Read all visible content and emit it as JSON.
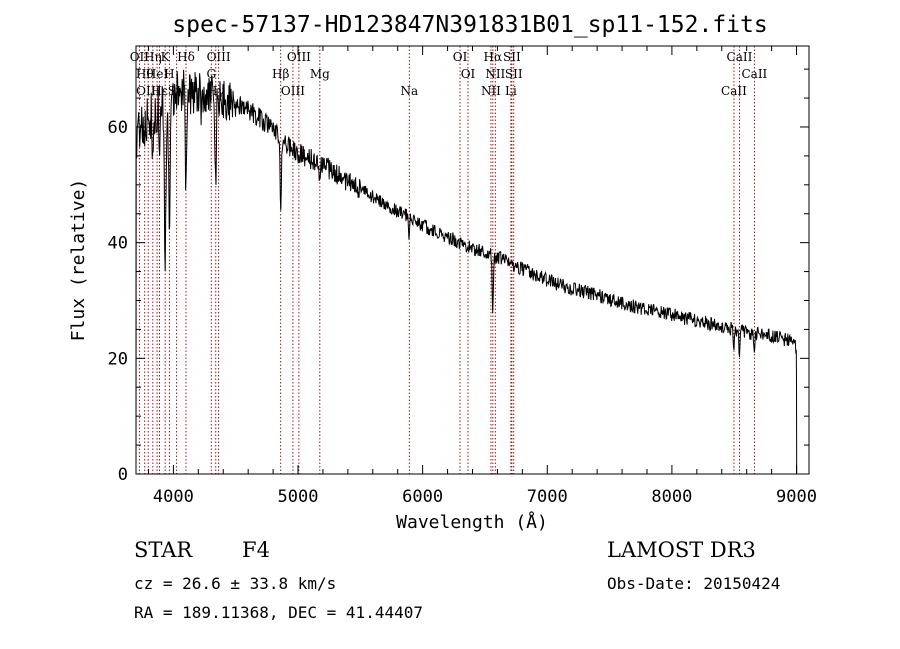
{
  "chart_data": {
    "type": "line",
    "title": "spec-57137-HD123847N391831B01_sp11-152.fits",
    "xlabel": "Wavelength (Å)",
    "ylabel": "Flux (relative)",
    "xlim": [
      3700,
      9100
    ],
    "ylim": [
      0,
      74
    ],
    "xticks": [
      4000,
      5000,
      6000,
      7000,
      8000,
      9000
    ],
    "xtick_labels": [
      "4000",
      "5000",
      "6000",
      "7000",
      "8000",
      "9000"
    ],
    "yticks": [
      0,
      20,
      40,
      60
    ],
    "ytick_labels": [
      "0",
      "20",
      "40",
      "60"
    ],
    "continuum": [
      [
        3700,
        58
      ],
      [
        3760,
        60
      ],
      [
        3820,
        62
      ],
      [
        3880,
        63
      ],
      [
        3950,
        64.5
      ],
      [
        4050,
        66
      ],
      [
        4150,
        66.2
      ],
      [
        4300,
        65.5
      ],
      [
        4400,
        65
      ],
      [
        4500,
        64
      ],
      [
        4600,
        63
      ],
      [
        4700,
        61.5
      ],
      [
        4800,
        59.5
      ],
      [
        4900,
        57
      ],
      [
        5000,
        55.5
      ],
      [
        5200,
        53.5
      ],
      [
        5400,
        50.5
      ],
      [
        5600,
        48
      ],
      [
        5800,
        45.5
      ],
      [
        6000,
        43
      ],
      [
        6200,
        41
      ],
      [
        6400,
        39
      ],
      [
        6600,
        37.5
      ],
      [
        6800,
        35.5
      ],
      [
        7000,
        33.5
      ],
      [
        7200,
        32
      ],
      [
        7400,
        31
      ],
      [
        7600,
        29.5
      ],
      [
        7800,
        28.5
      ],
      [
        8000,
        27.5
      ],
      [
        8200,
        26.5
      ],
      [
        8400,
        25.5
      ],
      [
        8600,
        24.5
      ],
      [
        8800,
        23.8
      ],
      [
        8950,
        23
      ],
      [
        9000,
        22
      ]
    ],
    "absorption_lines": [
      {
        "center": 3934,
        "depth": 28,
        "width": 6
      },
      {
        "center": 3968,
        "depth": 25,
        "width": 6
      },
      {
        "center": 4101,
        "depth": 18,
        "width": 5
      },
      {
        "center": 4340,
        "depth": 16,
        "width": 5
      },
      {
        "center": 4861,
        "depth": 13,
        "width": 5
      },
      {
        "center": 4226,
        "depth": 5,
        "width": 3
      },
      {
        "center": 4383,
        "depth": 4,
        "width": 3
      },
      {
        "center": 3835,
        "depth": 8,
        "width": 4
      },
      {
        "center": 3889,
        "depth": 10,
        "width": 4
      },
      {
        "center": 5175,
        "depth": 3,
        "width": 6
      },
      {
        "center": 5892,
        "depth": 3,
        "width": 4
      },
      {
        "center": 6563,
        "depth": 10,
        "width": 5
      },
      {
        "center": 8498,
        "depth": 3,
        "width": 5
      },
      {
        "center": 8542,
        "depth": 4,
        "width": 5
      },
      {
        "center": 8662,
        "depth": 3,
        "width": 5
      }
    ],
    "line_markers": [
      {
        "x": 3727,
        "label": "OII"
      },
      {
        "x": 3770,
        "label": "Hθ"
      },
      {
        "x": 3798,
        "label": "OIII"
      },
      {
        "x": 3835,
        "label": "Hη"
      },
      {
        "x": 3869,
        "label": "HeI"
      },
      {
        "x": 3889,
        "label": "Hε"
      },
      {
        "x": 3934,
        "label": "K"
      },
      {
        "x": 3968,
        "label": "H"
      },
      {
        "x": 4026,
        "label": "SII"
      },
      {
        "x": 4101,
        "label": "Hδ"
      },
      {
        "x": 4304,
        "label": "G"
      },
      {
        "x": 4340,
        "label": "Hγ"
      },
      {
        "x": 4363,
        "label": "OIII"
      },
      {
        "x": 4861,
        "label": "Hβ"
      },
      {
        "x": 4959,
        "label": "OIII"
      },
      {
        "x": 5007,
        "label": "OIII"
      },
      {
        "x": 5175,
        "label": "Mg"
      },
      {
        "x": 5893,
        "label": "Na"
      },
      {
        "x": 6300,
        "label": "OI"
      },
      {
        "x": 6364,
        "label": "OI"
      },
      {
        "x": 6548,
        "label": "NII"
      },
      {
        "x": 6563,
        "label": "Hα"
      },
      {
        "x": 6583,
        "label": "NII"
      },
      {
        "x": 6708,
        "label": "Li"
      },
      {
        "x": 6716,
        "label": "SII"
      },
      {
        "x": 6731,
        "label": "SII"
      },
      {
        "x": 8498,
        "label": "CaII"
      },
      {
        "x": 8542,
        "label": "CaII"
      },
      {
        "x": 8662,
        "label": "CaII"
      }
    ],
    "marker_color": "#8b0000",
    "trace_color": "#000000"
  },
  "info": {
    "object_type": "STAR",
    "subclass": "F4",
    "redshift": "cz = 26.6 ± 33.8 km/s",
    "coordinates": "RA = 189.11368, DEC =  41.44407",
    "survey": "LAMOST DR3",
    "obs_date": "Obs-Date: 20150424"
  }
}
